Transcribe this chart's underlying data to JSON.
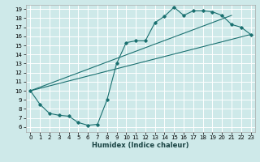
{
  "xlabel": "Humidex (Indice chaleur)",
  "bg_color": "#cee9e9",
  "grid_color": "#ffffff",
  "line_color": "#1a7070",
  "xlim": [
    -0.5,
    23.5
  ],
  "ylim": [
    5.5,
    19.5
  ],
  "xticks": [
    0,
    1,
    2,
    3,
    4,
    5,
    6,
    7,
    8,
    9,
    10,
    11,
    12,
    13,
    14,
    15,
    16,
    17,
    18,
    19,
    20,
    21,
    22,
    23
  ],
  "yticks": [
    6,
    7,
    8,
    9,
    10,
    11,
    12,
    13,
    14,
    15,
    16,
    17,
    18,
    19
  ],
  "line1_x": [
    0,
    1,
    2,
    3,
    4,
    5,
    6,
    7,
    8,
    9,
    10,
    11,
    12,
    13,
    14,
    15,
    16,
    17,
    18,
    19,
    20,
    21,
    22,
    23
  ],
  "line1_y": [
    10,
    8.5,
    7.5,
    7.3,
    7.2,
    6.5,
    6.2,
    6.3,
    9.0,
    13.0,
    15.3,
    15.5,
    15.5,
    17.5,
    18.2,
    19.2,
    18.3,
    18.8,
    18.8,
    18.7,
    18.3,
    17.3,
    17.0,
    16.2
  ],
  "line2_x": [
    0,
    21
  ],
  "line2_y": [
    10,
    18.3
  ],
  "line3_x": [
    0,
    23
  ],
  "line3_y": [
    10,
    16.2
  ],
  "xlabel_fontsize": 6,
  "tick_fontsize": 5
}
